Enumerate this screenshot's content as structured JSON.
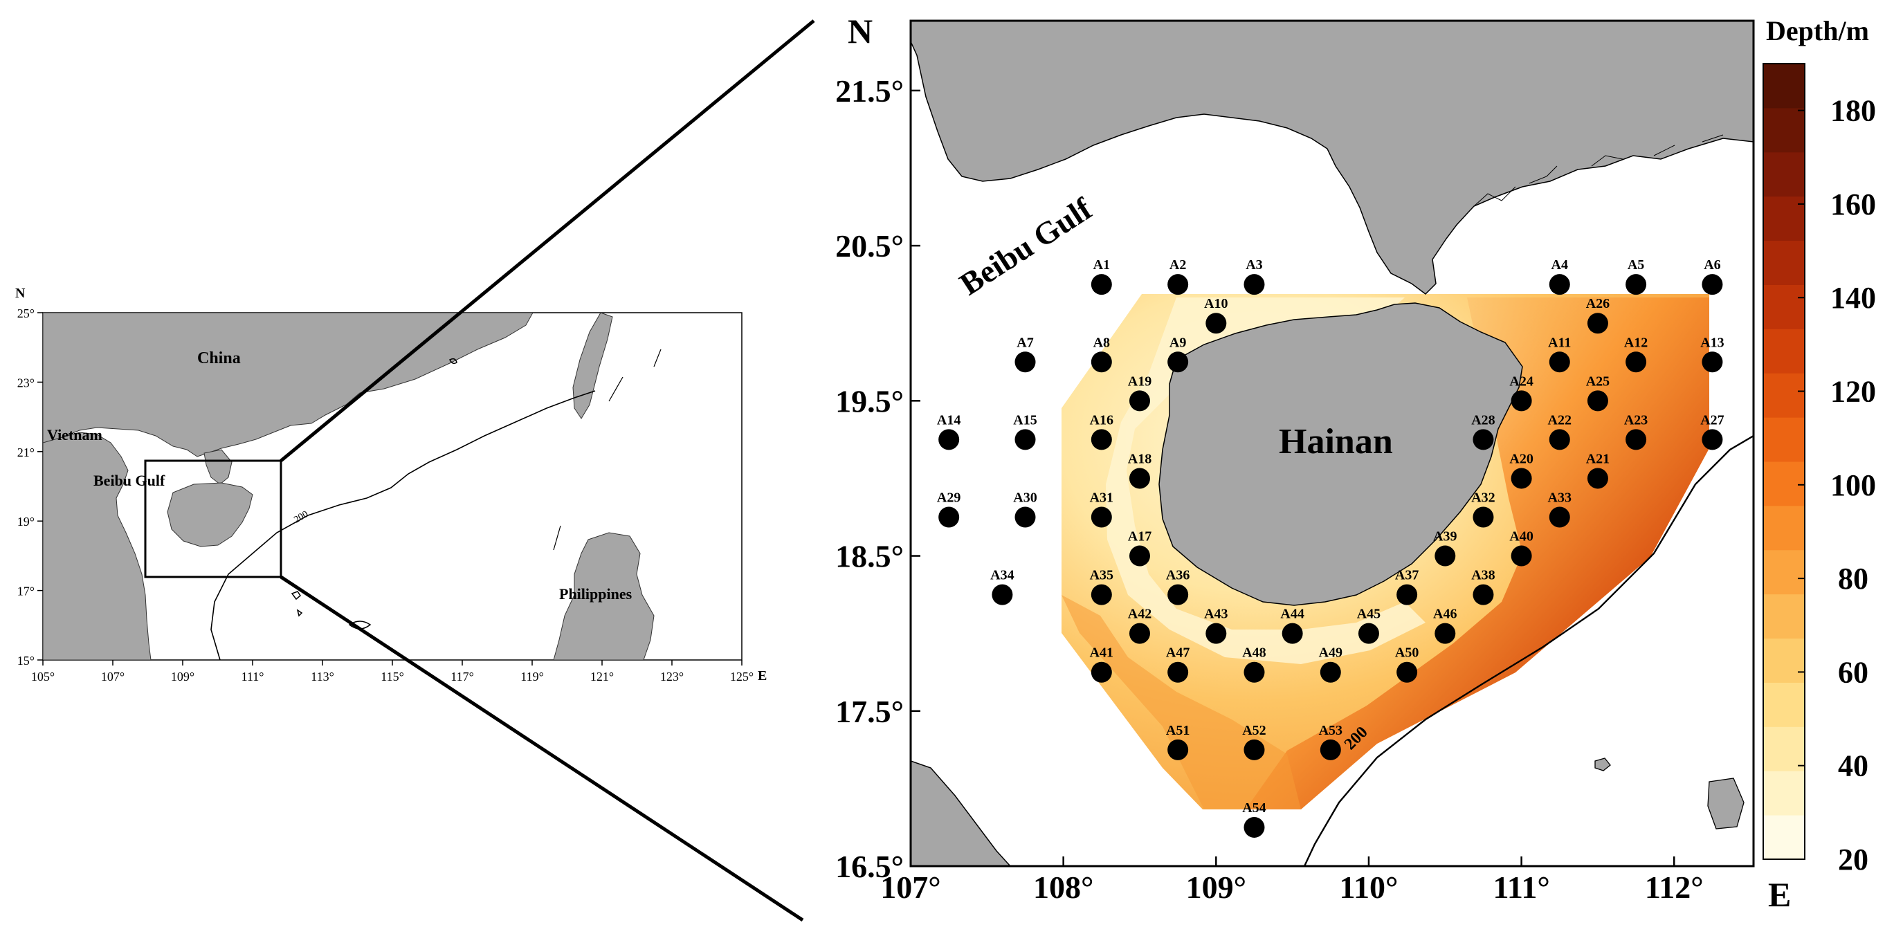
{
  "overview": {
    "north": "N",
    "east": "E",
    "lat_labels": [
      "25°",
      "23°",
      "21°",
      "19°",
      "17°",
      "15°"
    ],
    "lon_labels": [
      "105°",
      "107°",
      "109°",
      "111°",
      "113°",
      "115°",
      "117°",
      "119°",
      "121°",
      "123°",
      "125°"
    ],
    "places": {
      "china": "China",
      "vietnam": "Vietnam",
      "beibu_gulf": "Beibu Gulf",
      "philippines": "Philippines"
    },
    "contour": "200"
  },
  "main_map": {
    "north": "N",
    "east": "E",
    "lat_labels": [
      "21.5°",
      "20.5°",
      "19.5°",
      "18.5°",
      "17.5°",
      "16.5°"
    ],
    "lon_labels": [
      "107°",
      "108°",
      "109°",
      "110°",
      "111°",
      "112°"
    ],
    "places": {
      "hainan": "Hainan",
      "beibu_gulf": "Beibu Gulf"
    },
    "contour": "200",
    "stations": [
      {
        "id": "A1",
        "lon": 108.25,
        "lat": 20.25
      },
      {
        "id": "A2",
        "lon": 108.75,
        "lat": 20.25
      },
      {
        "id": "A3",
        "lon": 109.25,
        "lat": 20.25
      },
      {
        "id": "A4",
        "lon": 111.25,
        "lat": 20.25
      },
      {
        "id": "A5",
        "lon": 111.75,
        "lat": 20.25
      },
      {
        "id": "A6",
        "lon": 112.25,
        "lat": 20.25
      },
      {
        "id": "A10",
        "lon": 109.0,
        "lat": 20.0
      },
      {
        "id": "A26",
        "lon": 111.5,
        "lat": 20.0
      },
      {
        "id": "A7",
        "lon": 107.75,
        "lat": 19.75
      },
      {
        "id": "A8",
        "lon": 108.25,
        "lat": 19.75
      },
      {
        "id": "A9",
        "lon": 108.75,
        "lat": 19.75
      },
      {
        "id": "A11",
        "lon": 111.25,
        "lat": 19.75
      },
      {
        "id": "A12",
        "lon": 111.75,
        "lat": 19.75
      },
      {
        "id": "A13",
        "lon": 112.25,
        "lat": 19.75
      },
      {
        "id": "A19",
        "lon": 108.5,
        "lat": 19.5
      },
      {
        "id": "A24",
        "lon": 111.0,
        "lat": 19.5
      },
      {
        "id": "A25",
        "lon": 111.5,
        "lat": 19.5
      },
      {
        "id": "A14",
        "lon": 107.25,
        "lat": 19.25
      },
      {
        "id": "A15",
        "lon": 107.75,
        "lat": 19.25
      },
      {
        "id": "A16",
        "lon": 108.25,
        "lat": 19.25
      },
      {
        "id": "A28",
        "lon": 110.75,
        "lat": 19.25
      },
      {
        "id": "A22",
        "lon": 111.25,
        "lat": 19.25
      },
      {
        "id": "A23",
        "lon": 111.75,
        "lat": 19.25
      },
      {
        "id": "A27",
        "lon": 112.25,
        "lat": 19.25
      },
      {
        "id": "A18",
        "lon": 108.5,
        "lat": 19.0
      },
      {
        "id": "A20",
        "lon": 111.0,
        "lat": 19.0
      },
      {
        "id": "A21",
        "lon": 111.5,
        "lat": 19.0
      },
      {
        "id": "A29",
        "lon": 107.25,
        "lat": 18.75
      },
      {
        "id": "A30",
        "lon": 107.75,
        "lat": 18.75
      },
      {
        "id": "A31",
        "lon": 108.25,
        "lat": 18.75
      },
      {
        "id": "A32",
        "lon": 110.75,
        "lat": 18.75
      },
      {
        "id": "A33",
        "lon": 111.25,
        "lat": 18.75
      },
      {
        "id": "A17",
        "lon": 108.5,
        "lat": 18.5
      },
      {
        "id": "A39",
        "lon": 110.5,
        "lat": 18.5
      },
      {
        "id": "A40",
        "lon": 111.0,
        "lat": 18.5
      },
      {
        "id": "A34",
        "lon": 107.6,
        "lat": 18.25
      },
      {
        "id": "A35",
        "lon": 108.25,
        "lat": 18.25
      },
      {
        "id": "A36",
        "lon": 108.75,
        "lat": 18.25
      },
      {
        "id": "A37",
        "lon": 110.25,
        "lat": 18.25
      },
      {
        "id": "A38",
        "lon": 110.75,
        "lat": 18.25
      },
      {
        "id": "A42",
        "lon": 108.5,
        "lat": 18.0
      },
      {
        "id": "A43",
        "lon": 109.0,
        "lat": 18.0
      },
      {
        "id": "A44",
        "lon": 109.5,
        "lat": 18.0
      },
      {
        "id": "A45",
        "lon": 110.0,
        "lat": 18.0
      },
      {
        "id": "A46",
        "lon": 110.5,
        "lat": 18.0
      },
      {
        "id": "A41",
        "lon": 108.25,
        "lat": 17.75
      },
      {
        "id": "A47",
        "lon": 108.75,
        "lat": 17.75
      },
      {
        "id": "A48",
        "lon": 109.25,
        "lat": 17.75
      },
      {
        "id": "A49",
        "lon": 109.75,
        "lat": 17.75
      },
      {
        "id": "A50",
        "lon": 110.25,
        "lat": 17.75
      },
      {
        "id": "A51",
        "lon": 108.75,
        "lat": 17.25
      },
      {
        "id": "A52",
        "lon": 109.25,
        "lat": 17.25
      },
      {
        "id": "A53",
        "lon": 109.75,
        "lat": 17.25
      },
      {
        "id": "A54",
        "lon": 109.25,
        "lat": 16.75
      }
    ]
  },
  "legend": {
    "title": "Depth/m",
    "ticks": [
      "180",
      "160",
      "140",
      "120",
      "100",
      "80",
      "60",
      "40",
      "20"
    ],
    "colors": [
      "#fffbe6",
      "#fff3c6",
      "#ffe9a6",
      "#ffdd88",
      "#fdcc6c",
      "#fcb955",
      "#fba43f",
      "#f98f2c",
      "#f5791d",
      "#ec6413",
      "#e0520d",
      "#d2420a",
      "#c03408",
      "#ab2907",
      "#952006",
      "#7f1a06",
      "#6a1604",
      "#561203"
    ]
  },
  "colors": {
    "land": "#a6a6a6",
    "dot": "#000000"
  }
}
